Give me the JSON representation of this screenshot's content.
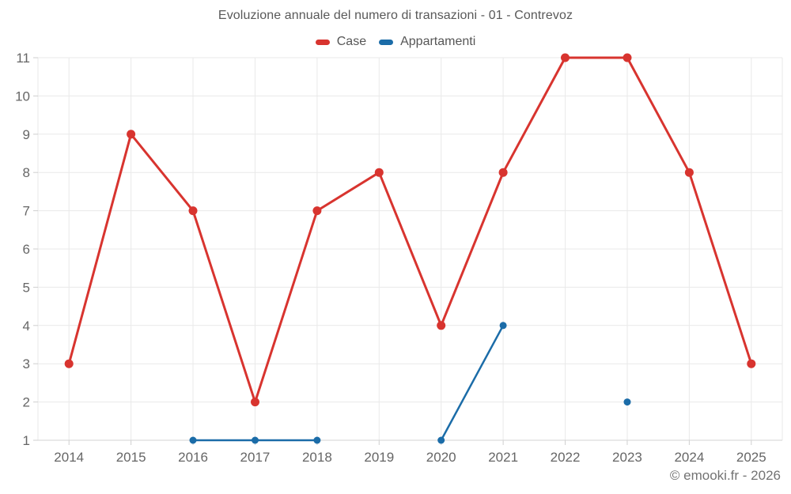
{
  "header": {
    "title": "Evoluzione annuale del numero di transazioni - 01 - Contrevoz"
  },
  "footer": {
    "credit": "© emooki.fr - 2026"
  },
  "colors": {
    "case_red": "#d8342f",
    "appartamenti_blue": "#1b6ca8",
    "gridline": "#e9e9e9",
    "axis_line": "#d3d3d3",
    "tick": "#cfcfcf",
    "tick_label": "#666666"
  },
  "chart_data": {
    "type": "line",
    "title": "Evoluzione annuale del numero di transazioni - 01 - Contrevoz",
    "categories": [
      "2014",
      "2015",
      "2016",
      "2017",
      "2018",
      "2019",
      "2020",
      "2021",
      "2022",
      "2023",
      "2024",
      "2025"
    ],
    "series": [
      {
        "name": "Case",
        "color": "#d8342f",
        "values": [
          3,
          9,
          7,
          2,
          7,
          8,
          4,
          8,
          11,
          11,
          8,
          3
        ]
      },
      {
        "name": "Appartamenti",
        "color": "#1b6ca8",
        "values": [
          null,
          null,
          1,
          1,
          1,
          null,
          1,
          4,
          null,
          2,
          null,
          null
        ]
      }
    ],
    "xlabel": "",
    "ylabel": "",
    "ylim": [
      1,
      11
    ],
    "yticks": [
      1,
      2,
      3,
      4,
      5,
      6,
      7,
      8,
      9,
      10,
      11
    ],
    "grid": true,
    "legend_position": "top",
    "point_style": "circle"
  }
}
